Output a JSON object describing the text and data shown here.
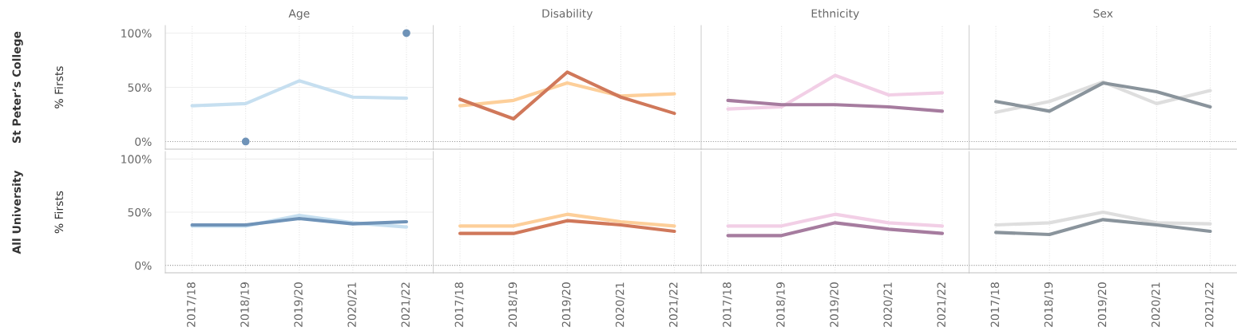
{
  "chart_data": [
    {
      "type": "line",
      "title": "Age",
      "ylabel": "% Firsts",
      "annotations": [
        "St Peter’s College"
      ],
      "categories": [
        "2017/18",
        "2018/19",
        "2019/20",
        "2020/21",
        "2021/22"
      ],
      "ylim": [
        -7,
        107
      ],
      "yticks": [
        {
          "value": 0,
          "label": "0%"
        },
        {
          "value": 50,
          "label": "50%"
        },
        {
          "value": 100,
          "label": "100%"
        }
      ],
      "tick_labels": "y",
      "grid": true,
      "ref_lines": [
        {
          "axis": "y",
          "value": 0,
          "line_style": "dotted",
          "color": "#999999"
        }
      ],
      "series": [
        {
          "color": "#c6dff0",
          "values": [
            33,
            35,
            56,
            41,
            40
          ]
        },
        {
          "type": "scatter",
          "marker": "circle",
          "color": "#6f93b8",
          "values": [
            null,
            0,
            null,
            null,
            100
          ]
        }
      ]
    },
    {
      "type": "line",
      "title": "Disability",
      "categories": [
        "2017/18",
        "2018/19",
        "2019/20",
        "2020/21",
        "2021/22"
      ],
      "ylim": [
        -7,
        107
      ],
      "tick_labels": false,
      "grid": true,
      "ref_lines": [
        {
          "axis": "y",
          "value": 0,
          "line_style": "dotted",
          "color": "#999999"
        }
      ],
      "series": [
        {
          "color": "#fdcf9a",
          "values": [
            33,
            38,
            54,
            42,
            44
          ]
        },
        {
          "color": "#d0785a",
          "values": [
            39,
            21,
            64,
            41,
            26
          ]
        }
      ]
    },
    {
      "type": "line",
      "title": "Ethnicity",
      "categories": [
        "2017/18",
        "2018/19",
        "2019/20",
        "2020/21",
        "2021/22"
      ],
      "ylim": [
        -7,
        107
      ],
      "tick_labels": false,
      "grid": true,
      "ref_lines": [
        {
          "axis": "y",
          "value": 0,
          "line_style": "dotted",
          "color": "#999999"
        }
      ],
      "series": [
        {
          "color": "#f2cfe6",
          "values": [
            30,
            32,
            61,
            43,
            45
          ]
        },
        {
          "color": "#a67c9f",
          "values": [
            38,
            34,
            34,
            32,
            28
          ]
        }
      ]
    },
    {
      "type": "line",
      "title": "Sex",
      "categories": [
        "2017/18",
        "2018/19",
        "2019/20",
        "2020/21",
        "2021/22"
      ],
      "ylim": [
        -7,
        107
      ],
      "tick_labels": false,
      "grid": true,
      "ref_lines": [
        {
          "axis": "y",
          "value": 0,
          "line_style": "dotted",
          "color": "#999999"
        }
      ],
      "series": [
        {
          "color": "#dedede",
          "values": [
            27,
            37,
            55,
            35,
            47
          ]
        },
        {
          "color": "#8a949c",
          "values": [
            37,
            28,
            54,
            46,
            32
          ]
        }
      ]
    },
    {
      "type": "line",
      "ylabel": "% Firsts",
      "annotations": [
        "All University"
      ],
      "categories": [
        "2017/18",
        "2018/19",
        "2019/20",
        "2020/21",
        "2021/22"
      ],
      "ylim": [
        -7,
        107
      ],
      "yticks": [
        {
          "value": 0,
          "label": "0%"
        },
        {
          "value": 50,
          "label": "50%"
        },
        {
          "value": 100,
          "label": "100%"
        }
      ],
      "grid": true,
      "ref_lines": [
        {
          "axis": "y",
          "value": 0,
          "line_style": "dotted",
          "color": "#999999"
        }
      ],
      "series": [
        {
          "color": "#c6dff0",
          "values": [
            37,
            37,
            47,
            40,
            36
          ]
        },
        {
          "color": "#6f93b8",
          "values": [
            38,
            38,
            44,
            39,
            41
          ]
        }
      ]
    },
    {
      "type": "line",
      "categories": [
        "2017/18",
        "2018/19",
        "2019/20",
        "2020/21",
        "2021/22"
      ],
      "ylim": [
        -7,
        107
      ],
      "tick_labels": "x",
      "grid": true,
      "ref_lines": [
        {
          "axis": "y",
          "value": 0,
          "line_style": "dotted",
          "color": "#999999"
        }
      ],
      "series": [
        {
          "color": "#fdcf9a",
          "values": [
            37,
            37,
            48,
            41,
            37
          ]
        },
        {
          "color": "#d0785a",
          "values": [
            30,
            30,
            42,
            38,
            32
          ]
        }
      ]
    },
    {
      "type": "line",
      "categories": [
        "2017/18",
        "2018/19",
        "2019/20",
        "2020/21",
        "2021/22"
      ],
      "ylim": [
        -7,
        107
      ],
      "tick_labels": "x",
      "grid": true,
      "ref_lines": [
        {
          "axis": "y",
          "value": 0,
          "line_style": "dotted",
          "color": "#999999"
        }
      ],
      "series": [
        {
          "color": "#f2cfe6",
          "values": [
            37,
            37,
            48,
            40,
            37
          ]
        },
        {
          "color": "#a67c9f",
          "values": [
            28,
            28,
            40,
            34,
            30
          ]
        }
      ]
    },
    {
      "type": "line",
      "categories": [
        "2017/18",
        "2018/19",
        "2019/20",
        "2020/21",
        "2021/22"
      ],
      "ylim": [
        -7,
        107
      ],
      "tick_labels": "x",
      "grid": true,
      "ref_lines": [
        {
          "axis": "y",
          "value": 0,
          "line_style": "dotted",
          "color": "#999999"
        }
      ],
      "series": [
        {
          "color": "#dedede",
          "values": [
            38,
            40,
            50,
            40,
            39
          ]
        },
        {
          "color": "#8a949c",
          "values": [
            31,
            29,
            43,
            38,
            32
          ]
        }
      ]
    }
  ]
}
